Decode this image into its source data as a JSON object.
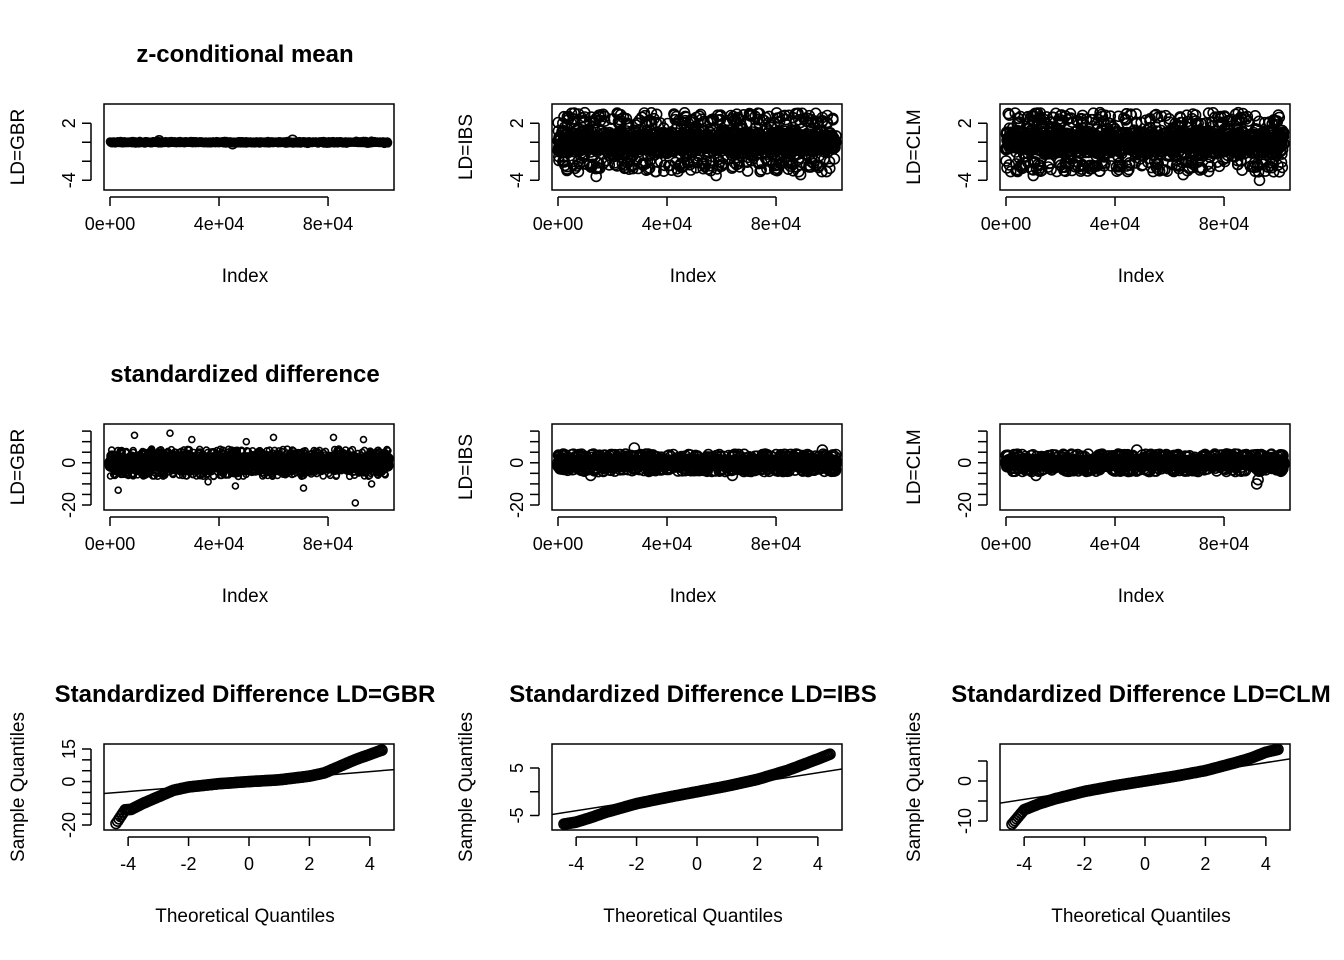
{
  "figure": {
    "row_titles": [
      "z-conditional mean",
      "standardized difference"
    ]
  },
  "chart_data": [
    {
      "type": "scatter",
      "title": "z-conditional mean",
      "xlabel": "Index",
      "ylabel": "LD=GBR",
      "xlim": [
        0,
        102000
      ],
      "ylim": [
        -4.5,
        3.5
      ],
      "xticks": [
        0,
        40000,
        80000
      ],
      "xtick_labels": [
        "0e+00",
        "4e+04",
        "8e+04"
      ],
      "yticks": [
        -4,
        -2,
        0,
        2
      ],
      "ytick_labels": [
        "-4",
        "",
        "",
        "2"
      ],
      "n_points": 102000,
      "y_spread": 0.25,
      "y_outliers": [
        [
          18000,
          0.15
        ],
        [
          67000,
          0.2
        ],
        [
          45000,
          -0.15
        ]
      ]
    },
    {
      "type": "scatter",
      "title": "",
      "xlabel": "Index",
      "ylabel": "LD=IBS",
      "xlim": [
        0,
        102000
      ],
      "ylim": [
        -4.5,
        3.5
      ],
      "xticks": [
        0,
        40000,
        80000
      ],
      "xtick_labels": [
        "0e+00",
        "4e+04",
        "8e+04"
      ],
      "yticks": [
        -4,
        -2,
        0,
        2
      ],
      "ytick_labels": [
        "-4",
        "",
        "",
        "2"
      ],
      "n_points": 102000,
      "y_band": [
        -2.4,
        2.4
      ],
      "y_outliers": [
        [
          4000,
          2.7
        ],
        [
          23000,
          2.9
        ],
        [
          66000,
          2.6
        ],
        [
          97000,
          2.6
        ],
        [
          14000,
          -3.6
        ],
        [
          58000,
          -3.5
        ],
        [
          89000,
          -3.4
        ]
      ]
    },
    {
      "type": "scatter",
      "title": "",
      "xlabel": "Index",
      "ylabel": "LD=CLM",
      "xlim": [
        0,
        102000
      ],
      "ylim": [
        -4.5,
        3.5
      ],
      "xticks": [
        0,
        40000,
        80000
      ],
      "xtick_labels": [
        "0e+00",
        "4e+04",
        "8e+04"
      ],
      "yticks": [
        -4,
        -2,
        0,
        2
      ],
      "ytick_labels": [
        "-4",
        "",
        "",
        "2"
      ],
      "n_points": 102000,
      "y_band": [
        -2.4,
        2.4
      ],
      "y_outliers": [
        [
          20000,
          2.8
        ],
        [
          76000,
          3.1
        ],
        [
          86000,
          2.6
        ],
        [
          10000,
          -3.5
        ],
        [
          65000,
          -3.4
        ],
        [
          93000,
          -4.0
        ]
      ]
    },
    {
      "type": "scatter",
      "title": "standardized difference",
      "xlabel": "Index",
      "ylabel": "LD=GBR",
      "xlim": [
        0,
        102000
      ],
      "ylim": [
        -20,
        16
      ],
      "xticks": [
        0,
        40000,
        80000
      ],
      "xtick_labels": [
        "0e+00",
        "4e+04",
        "8e+04"
      ],
      "yticks": [
        -20,
        -15,
        -10,
        -5,
        0,
        5,
        10,
        15
      ],
      "ytick_labels": [
        "-20",
        "",
        "",
        "",
        "0",
        "",
        "",
        ""
      ],
      "n_points": 102000,
      "y_band": [
        -5,
        5
      ],
      "y_outliers": [
        [
          22000,
          14
        ],
        [
          9000,
          13
        ],
        [
          30000,
          11
        ],
        [
          60000,
          12
        ],
        [
          82000,
          12
        ],
        [
          93000,
          11
        ],
        [
          50000,
          10
        ],
        [
          3000,
          -13
        ],
        [
          46000,
          -11
        ],
        [
          71000,
          -12
        ],
        [
          90000,
          -19
        ],
        [
          96000,
          -10
        ],
        [
          36000,
          -9
        ]
      ]
    },
    {
      "type": "scatter",
      "title": "",
      "xlabel": "Index",
      "ylabel": "LD=IBS",
      "xlim": [
        0,
        102000
      ],
      "ylim": [
        -20,
        16
      ],
      "xticks": [
        0,
        40000,
        80000
      ],
      "xtick_labels": [
        "0e+00",
        "4e+04",
        "8e+04"
      ],
      "yticks": [
        -20,
        -15,
        -10,
        -5,
        0,
        5,
        10,
        15
      ],
      "ytick_labels": [
        "-20",
        "",
        "",
        "",
        "0",
        "",
        "",
        ""
      ],
      "n_points": 102000,
      "y_band": [
        -3.2,
        3.2
      ],
      "y_outliers": [
        [
          28000,
          7
        ],
        [
          97000,
          6
        ],
        [
          12000,
          -6
        ],
        [
          64000,
          -6
        ]
      ]
    },
    {
      "type": "scatter",
      "title": "",
      "xlabel": "Index",
      "ylabel": "LD=CLM",
      "xlim": [
        0,
        102000
      ],
      "ylim": [
        -20,
        16
      ],
      "xticks": [
        0,
        40000,
        80000
      ],
      "xtick_labels": [
        "0e+00",
        "4e+04",
        "8e+04"
      ],
      "yticks": [
        -20,
        -15,
        -10,
        -5,
        0,
        5,
        10,
        15
      ],
      "ytick_labels": [
        "-20",
        "",
        "",
        "",
        "0",
        "",
        "",
        ""
      ],
      "n_points": 102000,
      "y_band": [
        -3.2,
        3.2
      ],
      "y_outliers": [
        [
          92000,
          -10
        ],
        [
          92500,
          -8
        ],
        [
          48000,
          6
        ],
        [
          11000,
          -6
        ]
      ]
    },
    {
      "type": "scatter",
      "title": "Standardized Difference LD=GBR",
      "xlabel": "Theoretical Quantiles",
      "ylabel": "Sample Quantiles",
      "xlim": [
        -4.6,
        4.6
      ],
      "ylim": [
        -20,
        15
      ],
      "xticks": [
        -4,
        -2,
        0,
        2,
        4
      ],
      "xtick_labels": [
        "-4",
        "-2",
        "0",
        "2",
        "4"
      ],
      "yticks": [
        -20,
        -15,
        -10,
        -5,
        0,
        5,
        10,
        15
      ],
      "ytick_labels": [
        "-20",
        "",
        "",
        "",
        "0",
        "",
        "",
        "15"
      ],
      "qq_points": [
        [
          -4.4,
          -19.3
        ],
        [
          -4.1,
          -13
        ],
        [
          -3.9,
          -12.8
        ],
        [
          -3.5,
          -10
        ],
        [
          -3,
          -7
        ],
        [
          -2.5,
          -4
        ],
        [
          -2,
          -2.5
        ],
        [
          -1,
          -1
        ],
        [
          0,
          0
        ],
        [
          1,
          0.8
        ],
        [
          2,
          2.5
        ],
        [
          2.5,
          4
        ],
        [
          3,
          7
        ],
        [
          3.5,
          10
        ],
        [
          4.1,
          13
        ],
        [
          4.4,
          14.5
        ]
      ],
      "qq_line": {
        "intercept": 0,
        "slope": 1.15
      }
    },
    {
      "type": "scatter",
      "title": "Standardized Difference LD=IBS",
      "xlabel": "Theoretical Quantiles",
      "ylabel": "Sample Quantiles",
      "xlim": [
        -4.6,
        4.6
      ],
      "ylim": [
        -7,
        9
      ],
      "xticks": [
        -4,
        -2,
        0,
        2,
        4
      ],
      "xtick_labels": [
        "-4",
        "-2",
        "0",
        "2",
        "4"
      ],
      "yticks": [
        -5,
        0,
        5
      ],
      "ytick_labels": [
        "-5",
        "",
        "5"
      ],
      "qq_points": [
        [
          -4.4,
          -6.8
        ],
        [
          -4,
          -6.4
        ],
        [
          -3.5,
          -5.4
        ],
        [
          -3,
          -4.3
        ],
        [
          -2,
          -2.5
        ],
        [
          -1,
          -1.2
        ],
        [
          0,
          0
        ],
        [
          1,
          1.2
        ],
        [
          2,
          2.6
        ],
        [
          3,
          4.5
        ],
        [
          3.5,
          5.7
        ],
        [
          4,
          6.9
        ],
        [
          4.4,
          7.9
        ]
      ],
      "qq_line": {
        "intercept": 0,
        "slope": 1.0
      }
    },
    {
      "type": "scatter",
      "title": "Standardized Difference LD=CLM",
      "xlabel": "Theoretical Quantiles",
      "ylabel": "Sample Quantiles",
      "xlim": [
        -4.6,
        4.6
      ],
      "ylim": [
        -11,
        8
      ],
      "xticks": [
        -4,
        -2,
        0,
        2,
        4
      ],
      "xtick_labels": [
        "-4",
        "-2",
        "0",
        "2",
        "4"
      ],
      "yticks": [
        -10,
        -5,
        0,
        5
      ],
      "ytick_labels": [
        "-10",
        "",
        "0",
        ""
      ],
      "qq_points": [
        [
          -4.4,
          -10.8
        ],
        [
          -4,
          -7.2
        ],
        [
          -3.5,
          -5.7
        ],
        [
          -3,
          -4.5
        ],
        [
          -2,
          -2.6
        ],
        [
          -1,
          -1.2
        ],
        [
          0,
          0
        ],
        [
          1,
          1.2
        ],
        [
          2,
          2.6
        ],
        [
          3,
          4.6
        ],
        [
          3.5,
          5.7
        ],
        [
          4,
          7.2
        ],
        [
          4.4,
          7.9
        ]
      ],
      "qq_line": {
        "intercept": 0,
        "slope": 1.15
      }
    }
  ]
}
